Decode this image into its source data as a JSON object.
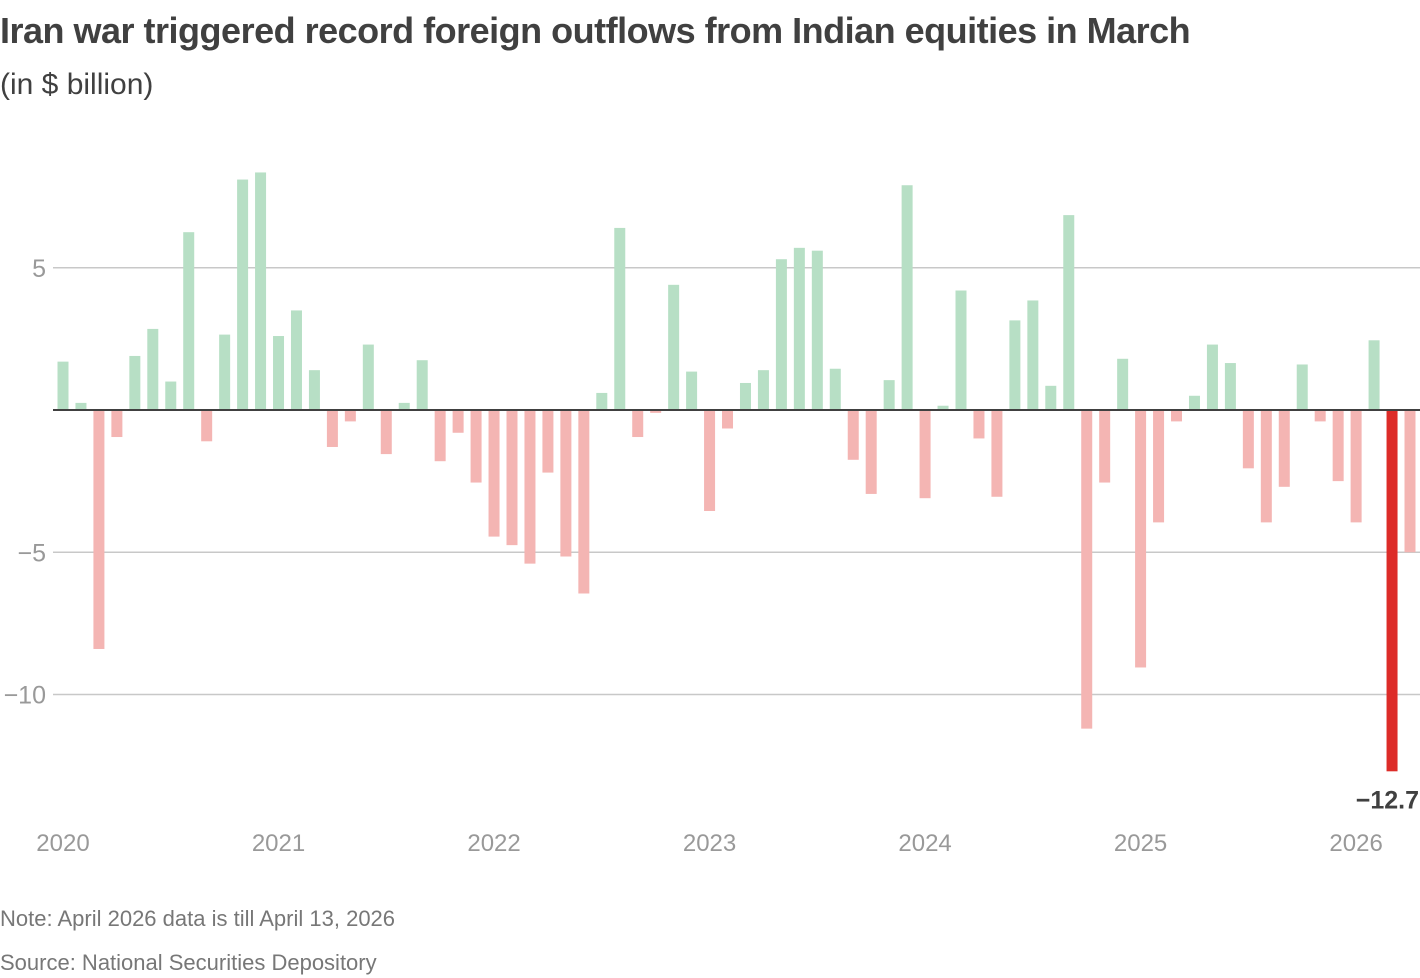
{
  "chart_data": {
    "type": "bar",
    "title": "Iran war triggered record foreign outflows from Indian equities in March",
    "subtitle": "(in $ billion)",
    "xlabel": "",
    "ylabel": "",
    "ylim": [
      -13.5,
      9
    ],
    "yticks": [
      5,
      -5,
      -10
    ],
    "ytick_labels": [
      "5",
      "−5",
      "−10"
    ],
    "grid": true,
    "x_tick_labels": [
      "2020",
      "2021",
      "2022",
      "2023",
      "2024",
      "2025",
      "2026"
    ],
    "start": "2020-01",
    "frequency": "monthly",
    "values": [
      1.7,
      0.25,
      -8.4,
      -0.95,
      1.9,
      2.85,
      1.0,
      6.25,
      -1.1,
      2.65,
      8.1,
      8.35,
      2.6,
      3.5,
      1.4,
      -1.3,
      -0.4,
      2.3,
      -1.55,
      0.25,
      1.75,
      -1.8,
      -0.8,
      -2.55,
      -4.45,
      -4.75,
      -5.4,
      -2.2,
      -5.15,
      -6.45,
      0.6,
      6.4,
      -0.95,
      -0.1,
      4.4,
      1.35,
      -3.55,
      -0.65,
      0.95,
      1.4,
      5.3,
      5.7,
      5.6,
      1.45,
      -1.75,
      -2.95,
      1.05,
      7.9,
      -3.1,
      0.15,
      4.2,
      -1.0,
      -3.05,
      3.15,
      3.85,
      0.85,
      6.85,
      -11.2,
      -2.55,
      1.8,
      -9.05,
      -3.95,
      -0.4,
      0.5,
      2.3,
      1.65,
      -2.05,
      -3.95,
      -2.7,
      1.6,
      -0.4,
      -2.5,
      -3.95,
      2.45,
      -12.7,
      -5.0
    ],
    "highlight_index": 74,
    "highlight_label": "−12.7",
    "colors": {
      "positive": "#b7dfc5",
      "negative": "#f4b5b3",
      "highlight": "#dd2c28",
      "grid": "#c8c8c8",
      "axis": "#404040"
    }
  },
  "footer": {
    "note": "Note: April 2026 data  is till April 13, 2026",
    "source": "Source: National Securities Depository"
  }
}
